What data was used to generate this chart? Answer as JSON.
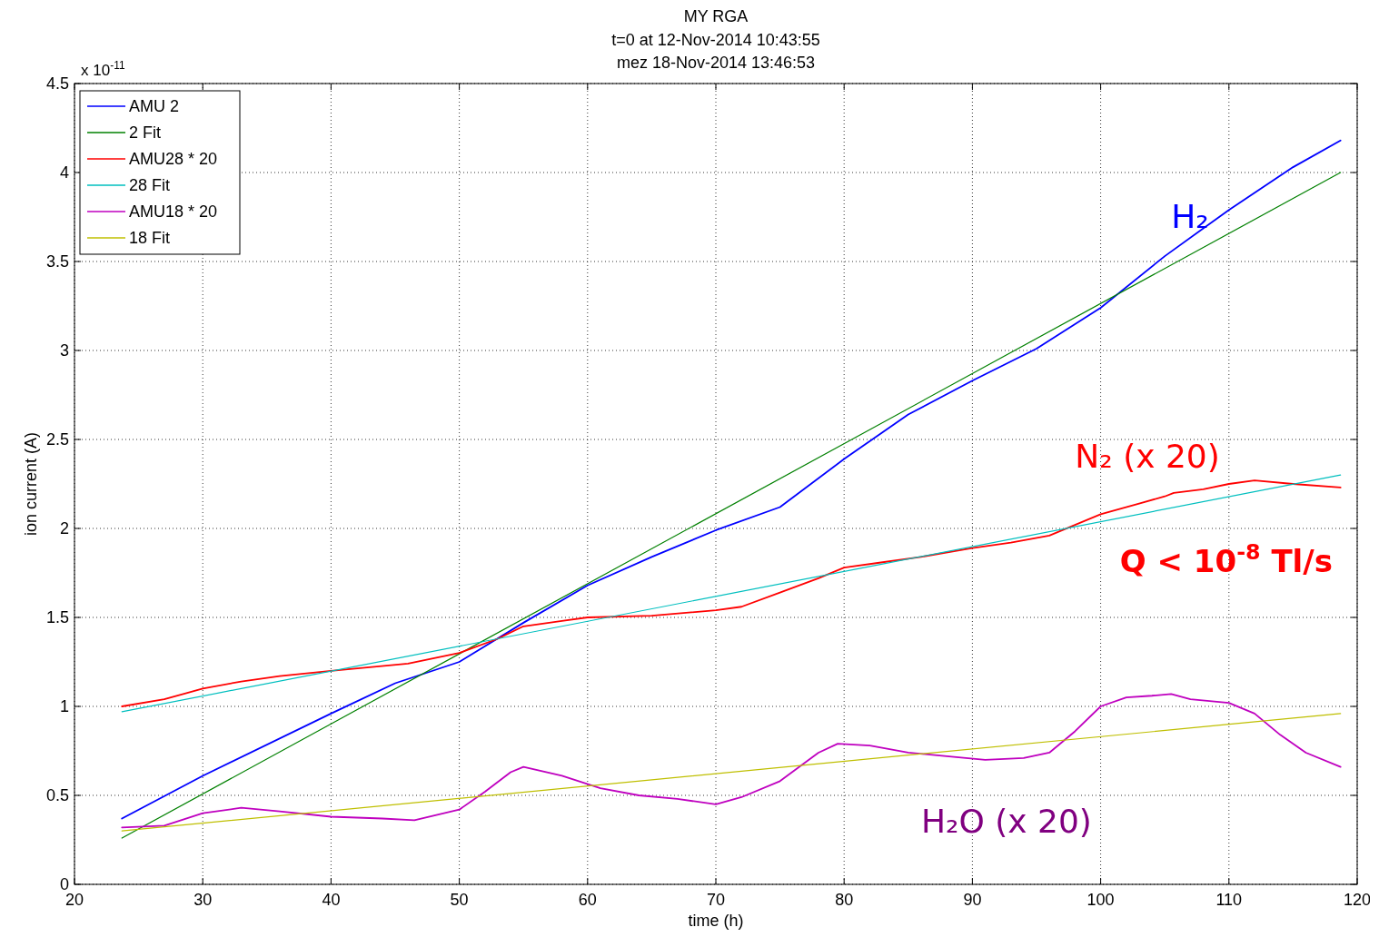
{
  "chart_data": {
    "type": "line",
    "title": "MY RGA",
    "subtitle": "t=0 at 12-Nov-2014 10:43:55\nmez 18-Nov-2014 13:46:53",
    "xlabel": "time (h)",
    "ylabel": "ion current (A)",
    "xlim": [
      20,
      120
    ],
    "xticks": [
      20,
      30,
      40,
      50,
      60,
      70,
      80,
      90,
      100,
      110,
      120
    ],
    "ylim": [
      0,
      4.5
    ],
    "yticks": [
      0,
      0.5,
      1,
      1.5,
      2,
      2.5,
      3,
      3.5,
      4,
      4.5
    ],
    "grid": true,
    "legend": "top left",
    "line_style": "solid",
    "series": [
      {
        "name": "AMU 2",
        "color": "#0000ff",
        "x": [
          23.7,
          30,
          40,
          45,
          50,
          55,
          60,
          65,
          70,
          75,
          80,
          85,
          90,
          95,
          100,
          105,
          110,
          115,
          118.7
        ],
        "values": [
          0.37,
          0.61,
          0.96,
          1.13,
          1.25,
          1.47,
          1.68,
          1.84,
          1.99,
          2.12,
          2.39,
          2.64,
          2.83,
          3.01,
          3.24,
          3.53,
          3.79,
          4.03,
          4.18
        ]
      },
      {
        "name": "2 Fit",
        "color": "#008000",
        "x": [
          23.7,
          118.7
        ],
        "values": [
          0.26,
          4.0
        ]
      },
      {
        "name": "AMU28 * 20",
        "color": "#ff0000",
        "x": [
          23.7,
          27,
          30,
          33,
          36,
          40,
          43,
          46,
          50,
          53,
          55,
          58,
          60,
          65,
          70,
          72,
          75,
          78,
          80,
          83,
          86,
          90,
          93,
          96,
          98,
          100,
          103,
          105,
          105.7,
          108,
          110,
          112,
          115,
          118.7
        ],
        "values": [
          1.0,
          1.04,
          1.1,
          1.14,
          1.17,
          1.2,
          1.22,
          1.24,
          1.3,
          1.38,
          1.45,
          1.48,
          1.5,
          1.51,
          1.54,
          1.56,
          1.64,
          1.72,
          1.78,
          1.81,
          1.84,
          1.89,
          1.92,
          1.96,
          2.02,
          2.08,
          2.14,
          2.18,
          2.2,
          2.22,
          2.25,
          2.27,
          2.25,
          2.23
        ]
      },
      {
        "name": "28 Fit",
        "color": "#00bfbf",
        "x": [
          23.7,
          118.7
        ],
        "values": [
          0.97,
          2.3
        ]
      },
      {
        "name": "AMU18 * 20",
        "color": "#bf00bf",
        "x": [
          23.7,
          27,
          30,
          33,
          36,
          40,
          44,
          46.5,
          50,
          52,
          54,
          55,
          58,
          61,
          64,
          67,
          70,
          72,
          75,
          78,
          79.5,
          82,
          85,
          88,
          91,
          94,
          96,
          98,
          100,
          102,
          104,
          105.5,
          107,
          110,
          112,
          114,
          116,
          118.7
        ],
        "values": [
          0.32,
          0.33,
          0.4,
          0.43,
          0.41,
          0.38,
          0.37,
          0.36,
          0.42,
          0.52,
          0.63,
          0.66,
          0.61,
          0.54,
          0.5,
          0.48,
          0.45,
          0.49,
          0.58,
          0.74,
          0.79,
          0.78,
          0.74,
          0.72,
          0.7,
          0.71,
          0.74,
          0.86,
          1.0,
          1.05,
          1.06,
          1.07,
          1.04,
          1.02,
          0.96,
          0.84,
          0.74,
          0.66
        ]
      },
      {
        "name": "18 Fit",
        "color": "#bfbf00",
        "x": [
          23.7,
          118.7
        ],
        "values": [
          0.3,
          0.96
        ]
      }
    ],
    "annotations": [
      "x 10$^{-11}$",
      "H₂",
      "N₂  (x 20)",
      "Q < 10$^{-8}$ Tl/s",
      "H₂O  (x 20)"
    ]
  }
}
